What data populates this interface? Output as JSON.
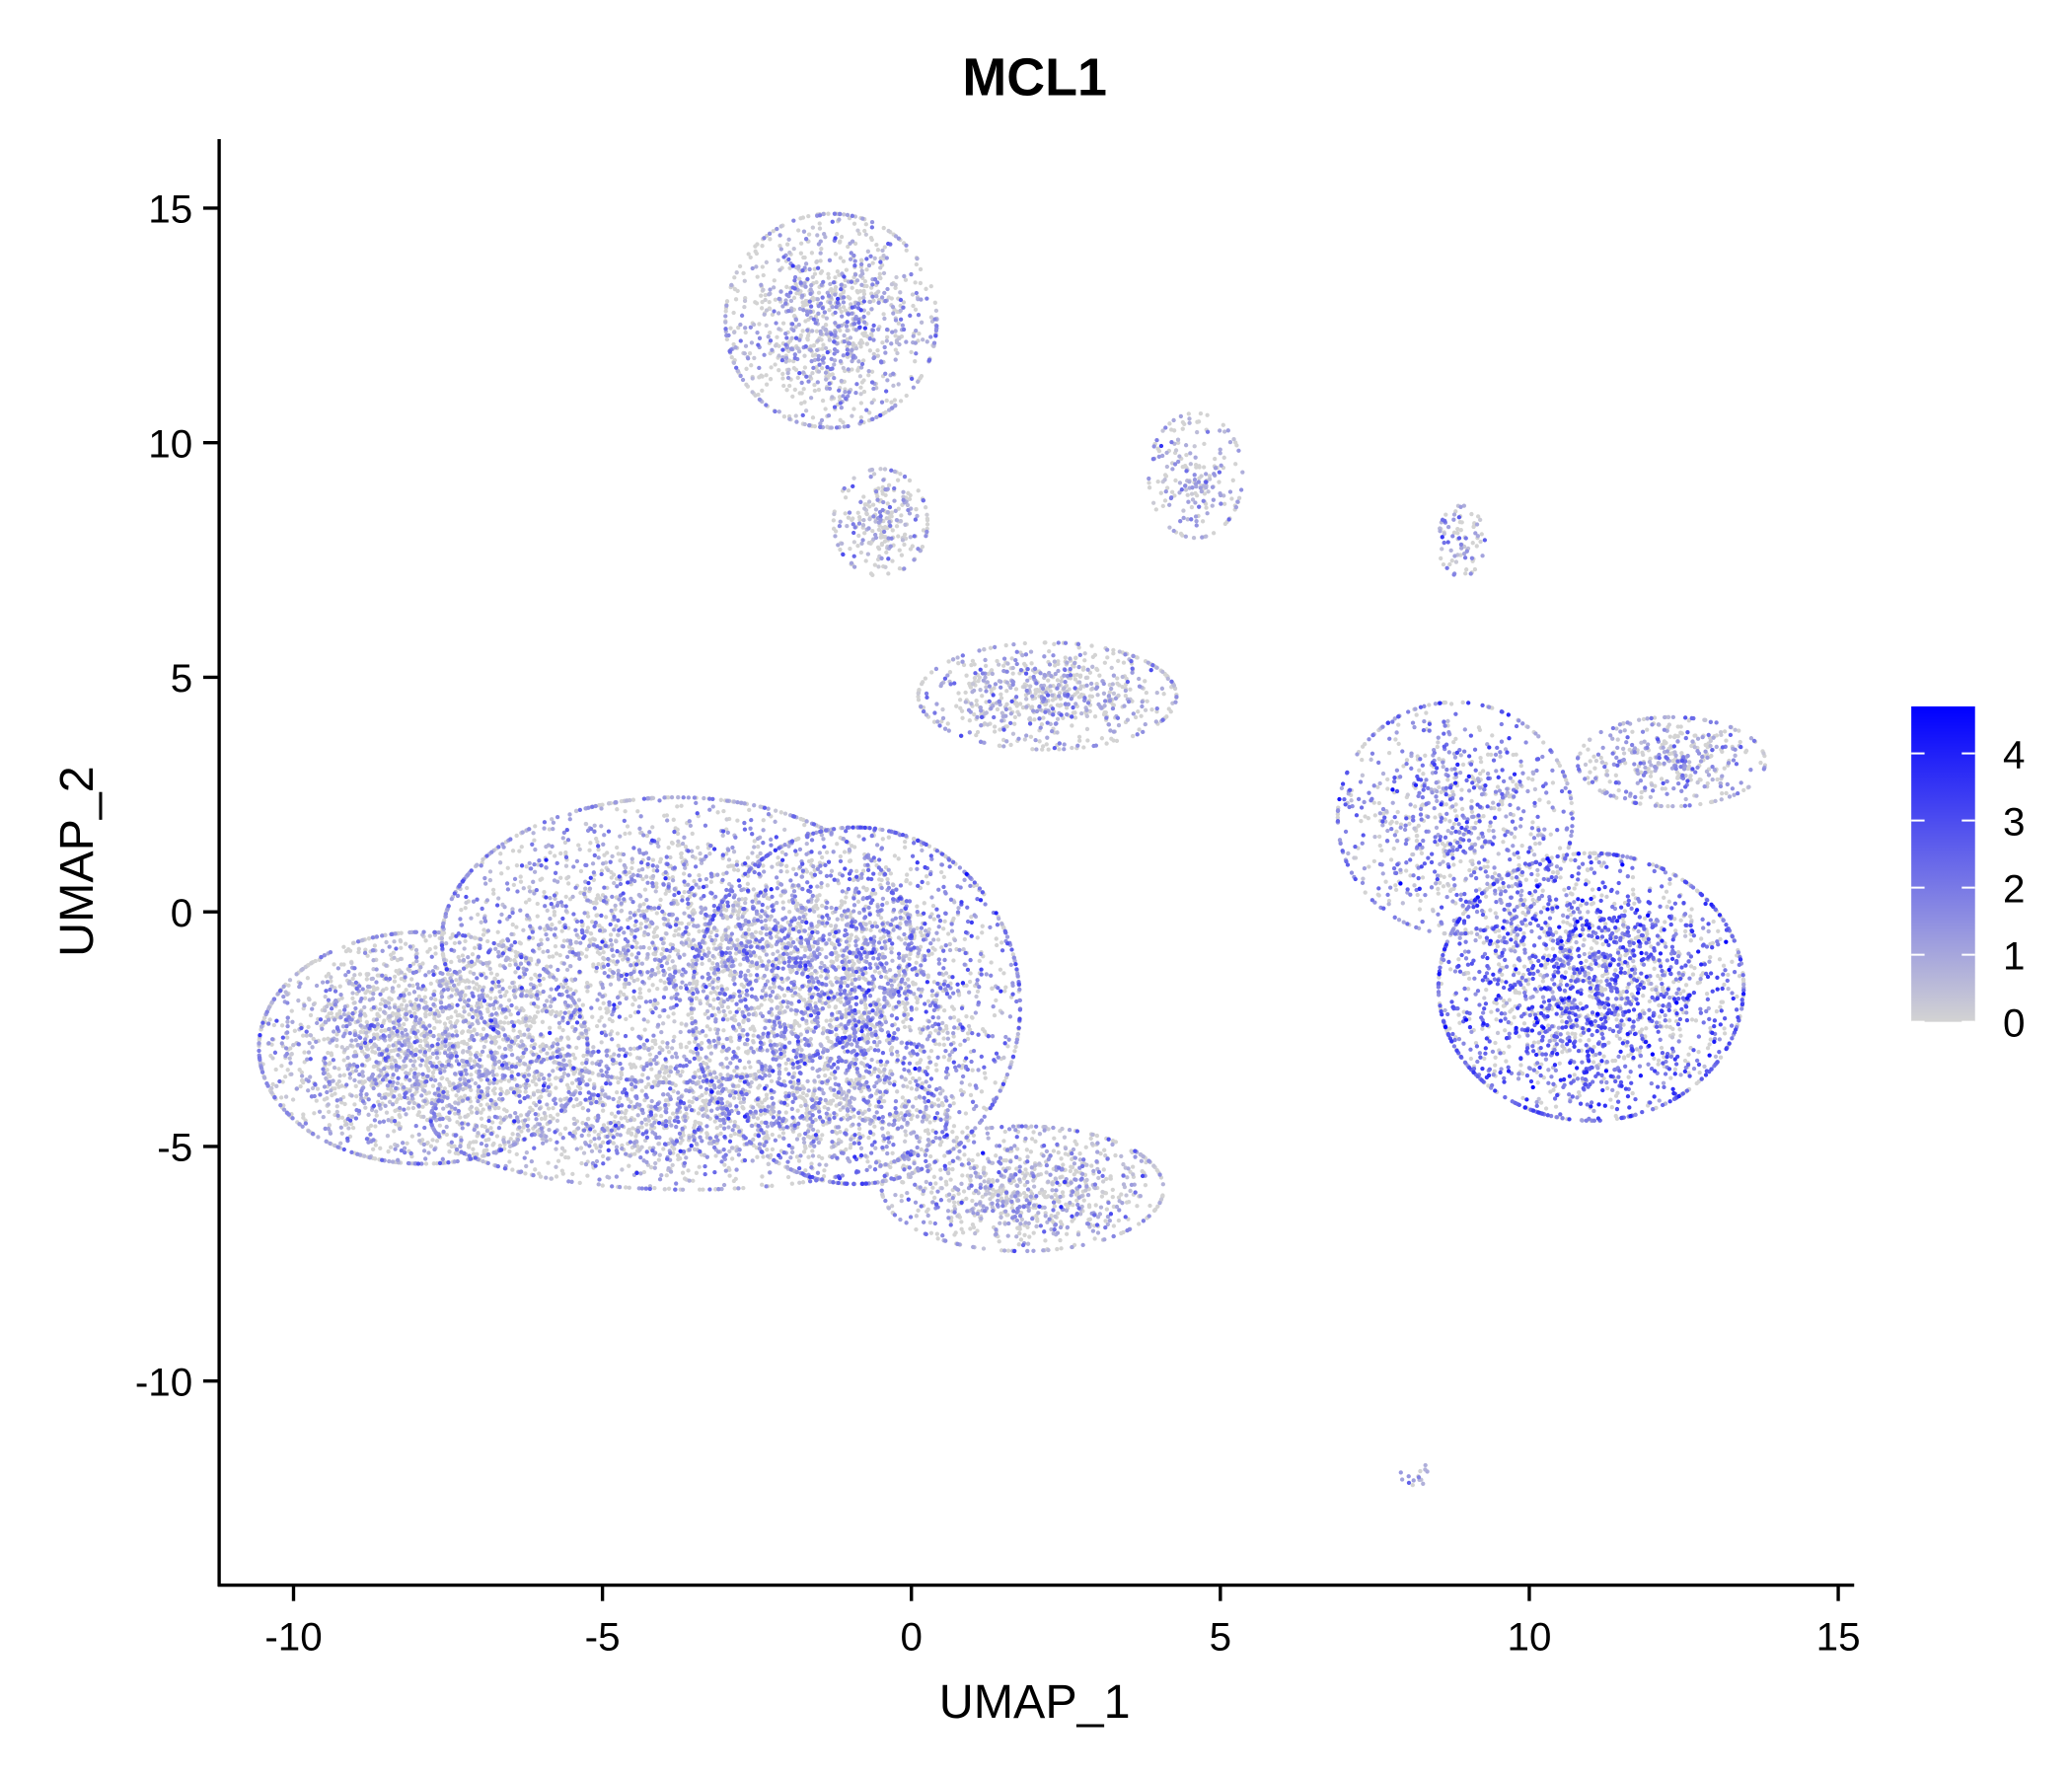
{
  "chart_data": {
    "type": "scatter",
    "title": "MCL1",
    "xlabel": "UMAP_1",
    "ylabel": "UMAP_2",
    "xlim": [
      -11.2,
      15.3
    ],
    "ylim": [
      -14.3,
      16.5
    ],
    "xticks": [
      -10,
      -5,
      0,
      5,
      10,
      15
    ],
    "yticks": [
      -10,
      -5,
      0,
      5,
      10,
      15
    ],
    "grid": false,
    "legend": {
      "placement": "right",
      "type": "colorbar",
      "ticks": [
        0,
        1,
        2,
        3,
        4
      ],
      "range": [
        0,
        4.7
      ],
      "low_color": "#D3D3D3",
      "high_color": "#0000FF"
    },
    "clusters_approx": [
      {
        "name": "left-far",
        "cx": -7.9,
        "cy": -2.9,
        "sx": 1.4,
        "sy": 1.3,
        "n": 2400,
        "mean_expr": 0.8
      },
      {
        "name": "left-mid",
        "cx": -3.8,
        "cy": -0.6,
        "sx": 2.0,
        "sy": 1.6,
        "n": 2600,
        "mean_expr": 1.1
      },
      {
        "name": "center",
        "cx": -0.9,
        "cy": -2.0,
        "sx": 1.4,
        "sy": 2.0,
        "n": 2600,
        "mean_expr": 1.5
      },
      {
        "name": "lower-band",
        "cx": -3.6,
        "cy": -4.4,
        "sx": 2.2,
        "sy": 0.8,
        "n": 1600,
        "mean_expr": 1.0
      },
      {
        "name": "lower-tail",
        "cx": 1.8,
        "cy": -5.9,
        "sx": 1.2,
        "sy": 0.7,
        "n": 900,
        "mean_expr": 0.8
      },
      {
        "name": "top",
        "cx": -1.3,
        "cy": 12.6,
        "sx": 0.9,
        "sy": 1.2,
        "n": 1100,
        "mean_expr": 0.9
      },
      {
        "name": "top-small",
        "cx": -0.5,
        "cy": 8.3,
        "sx": 0.4,
        "sy": 0.6,
        "n": 250,
        "mean_expr": 0.7
      },
      {
        "name": "mid",
        "cx": 2.2,
        "cy": 4.6,
        "sx": 1.1,
        "sy": 0.6,
        "n": 700,
        "mean_expr": 0.8
      },
      {
        "name": "upper-arm",
        "cx": 4.6,
        "cy": 9.3,
        "sx": 0.4,
        "sy": 0.7,
        "n": 200,
        "mean_expr": 0.9
      },
      {
        "name": "right-main",
        "cx": 11.0,
        "cy": -1.6,
        "sx": 1.3,
        "sy": 1.5,
        "n": 2200,
        "mean_expr": 2.3
      },
      {
        "name": "right-upper",
        "cx": 8.8,
        "cy": 2.0,
        "sx": 1.0,
        "sy": 1.3,
        "n": 900,
        "mean_expr": 1.7
      },
      {
        "name": "right-arm",
        "cx": 12.3,
        "cy": 3.2,
        "sx": 0.8,
        "sy": 0.5,
        "n": 400,
        "mean_expr": 1.0
      },
      {
        "name": "right-spike",
        "cx": 8.9,
        "cy": 7.9,
        "sx": 0.2,
        "sy": 0.4,
        "n": 80,
        "mean_expr": 1.0
      },
      {
        "name": "bottom-tiny",
        "cx": 8.2,
        "cy": -12.0,
        "sx": 0.15,
        "sy": 0.12,
        "n": 15,
        "mean_expr": 1.2
      }
    ]
  }
}
